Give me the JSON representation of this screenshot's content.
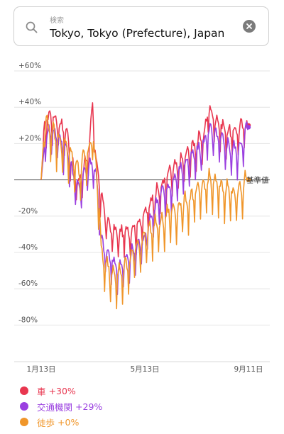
{
  "search": {
    "placeholder": "検索",
    "value": "Tokyo, Tokyo (Prefecture), Japan"
  },
  "legend": [
    {
      "name": "車",
      "change": "+30%",
      "color": "#e8364f"
    },
    {
      "name": "交通機関",
      "change": "+29%",
      "color": "#9a3fe0"
    },
    {
      "name": "徒歩",
      "change": "+0%",
      "color": "#f0962a"
    }
  ],
  "chart_data": {
    "type": "line",
    "ylim": [
      -90,
      60
    ],
    "yticks": [
      60,
      40,
      20,
      0,
      -20,
      -40,
      -60,
      -80
    ],
    "ytick_labels": [
      "+60%",
      "+40%",
      "+20%",
      "",
      "-20%",
      "-40%",
      "-60%",
      "-80%"
    ],
    "baseline_label": "基準値",
    "xtick_labels": [
      {
        "day": 0,
        "label": "1月13日"
      },
      {
        "day": 121,
        "label": "5月13日"
      },
      {
        "day": 242,
        "label": "9月11日"
      }
    ],
    "grid": true,
    "series": [
      {
        "name": "車",
        "color": "#e8364f",
        "end_value": 30,
        "keypoints": [
          [
            0,
            0
          ],
          [
            4,
            28
          ],
          [
            10,
            34
          ],
          [
            20,
            30
          ],
          [
            30,
            24
          ],
          [
            38,
            2
          ],
          [
            44,
            -4
          ],
          [
            50,
            6
          ],
          [
            56,
            14
          ],
          [
            60,
            40
          ],
          [
            64,
            10
          ],
          [
            68,
            -4
          ],
          [
            70,
            -10
          ],
          [
            74,
            -20
          ],
          [
            80,
            -28
          ],
          [
            90,
            -32
          ],
          [
            100,
            -30
          ],
          [
            110,
            -28
          ],
          [
            120,
            -22
          ],
          [
            130,
            -12
          ],
          [
            140,
            -6
          ],
          [
            150,
            2
          ],
          [
            160,
            6
          ],
          [
            170,
            12
          ],
          [
            180,
            18
          ],
          [
            190,
            22
          ],
          [
            195,
            38
          ],
          [
            200,
            34
          ],
          [
            210,
            28
          ],
          [
            220,
            24
          ],
          [
            230,
            26
          ],
          [
            242,
            30
          ]
        ]
      },
      {
        "name": "交通機関",
        "color": "#9a3fe0",
        "end_value": 29,
        "keypoints": [
          [
            0,
            0
          ],
          [
            4,
            20
          ],
          [
            10,
            26
          ],
          [
            20,
            22
          ],
          [
            30,
            14
          ],
          [
            38,
            0
          ],
          [
            44,
            -8
          ],
          [
            50,
            2
          ],
          [
            56,
            6
          ],
          [
            60,
            8
          ],
          [
            64,
            2
          ],
          [
            68,
            -20
          ],
          [
            70,
            -36
          ],
          [
            74,
            -40
          ],
          [
            80,
            -45
          ],
          [
            90,
            -50
          ],
          [
            100,
            -46
          ],
          [
            110,
            -40
          ],
          [
            120,
            -34
          ],
          [
            130,
            -20
          ],
          [
            140,
            -10
          ],
          [
            150,
            -6
          ],
          [
            160,
            2
          ],
          [
            170,
            8
          ],
          [
            180,
            12
          ],
          [
            190,
            18
          ],
          [
            195,
            26
          ],
          [
            200,
            24
          ],
          [
            210,
            20
          ],
          [
            220,
            16
          ],
          [
            230,
            14
          ],
          [
            242,
            29
          ]
        ]
      },
      {
        "name": "徒歩",
        "color": "#f0962a",
        "end_value": 0,
        "keypoints": [
          [
            0,
            0
          ],
          [
            4,
            32
          ],
          [
            10,
            26
          ],
          [
            20,
            20
          ],
          [
            30,
            16
          ],
          [
            38,
            8
          ],
          [
            44,
            2
          ],
          [
            50,
            10
          ],
          [
            56,
            14
          ],
          [
            60,
            24
          ],
          [
            64,
            6
          ],
          [
            68,
            -18
          ],
          [
            70,
            -42
          ],
          [
            74,
            -48
          ],
          [
            80,
            -52
          ],
          [
            90,
            -54
          ],
          [
            100,
            -50
          ],
          [
            110,
            -40
          ],
          [
            120,
            -34
          ],
          [
            130,
            -28
          ],
          [
            140,
            -26
          ],
          [
            150,
            -20
          ],
          [
            160,
            -18
          ],
          [
            170,
            -14
          ],
          [
            180,
            -10
          ],
          [
            190,
            -6
          ],
          [
            195,
            -2
          ],
          [
            200,
            -4
          ],
          [
            210,
            -6
          ],
          [
            220,
            -8
          ],
          [
            230,
            -10
          ],
          [
            242,
            0
          ]
        ]
      }
    ]
  }
}
